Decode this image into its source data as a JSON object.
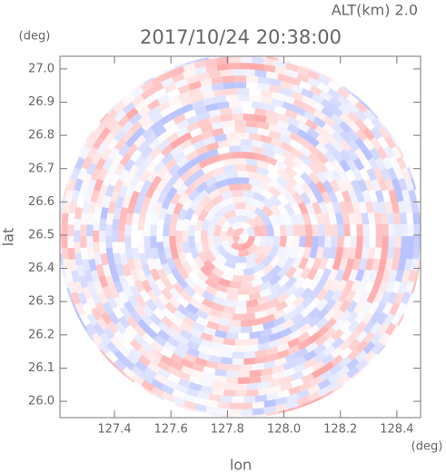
{
  "chart_data": {
    "type": "ppi",
    "title": "2017/10/24 20:38:00",
    "subtitle": "ALT(km) 2.0",
    "x_label": "lon",
    "x_unit": "(deg)",
    "y_label": "lat",
    "y_unit": "(deg)",
    "xlim": [
      127.207,
      128.484
    ],
    "ylim": [
      25.951,
      27.038
    ],
    "xticks": [
      127.4,
      127.6,
      127.8,
      {
        "value": 128.0,
        "label": "128.0"
      },
      128.2,
      128.4
    ],
    "yticks": [
      {
        "value": 26.0,
        "label": "26.0"
      },
      26.1,
      26.2,
      26.3,
      26.4,
      26.5,
      26.6,
      26.7,
      26.8,
      26.9,
      {
        "value": 27.0,
        "label": "27.0"
      }
    ]
  }
}
